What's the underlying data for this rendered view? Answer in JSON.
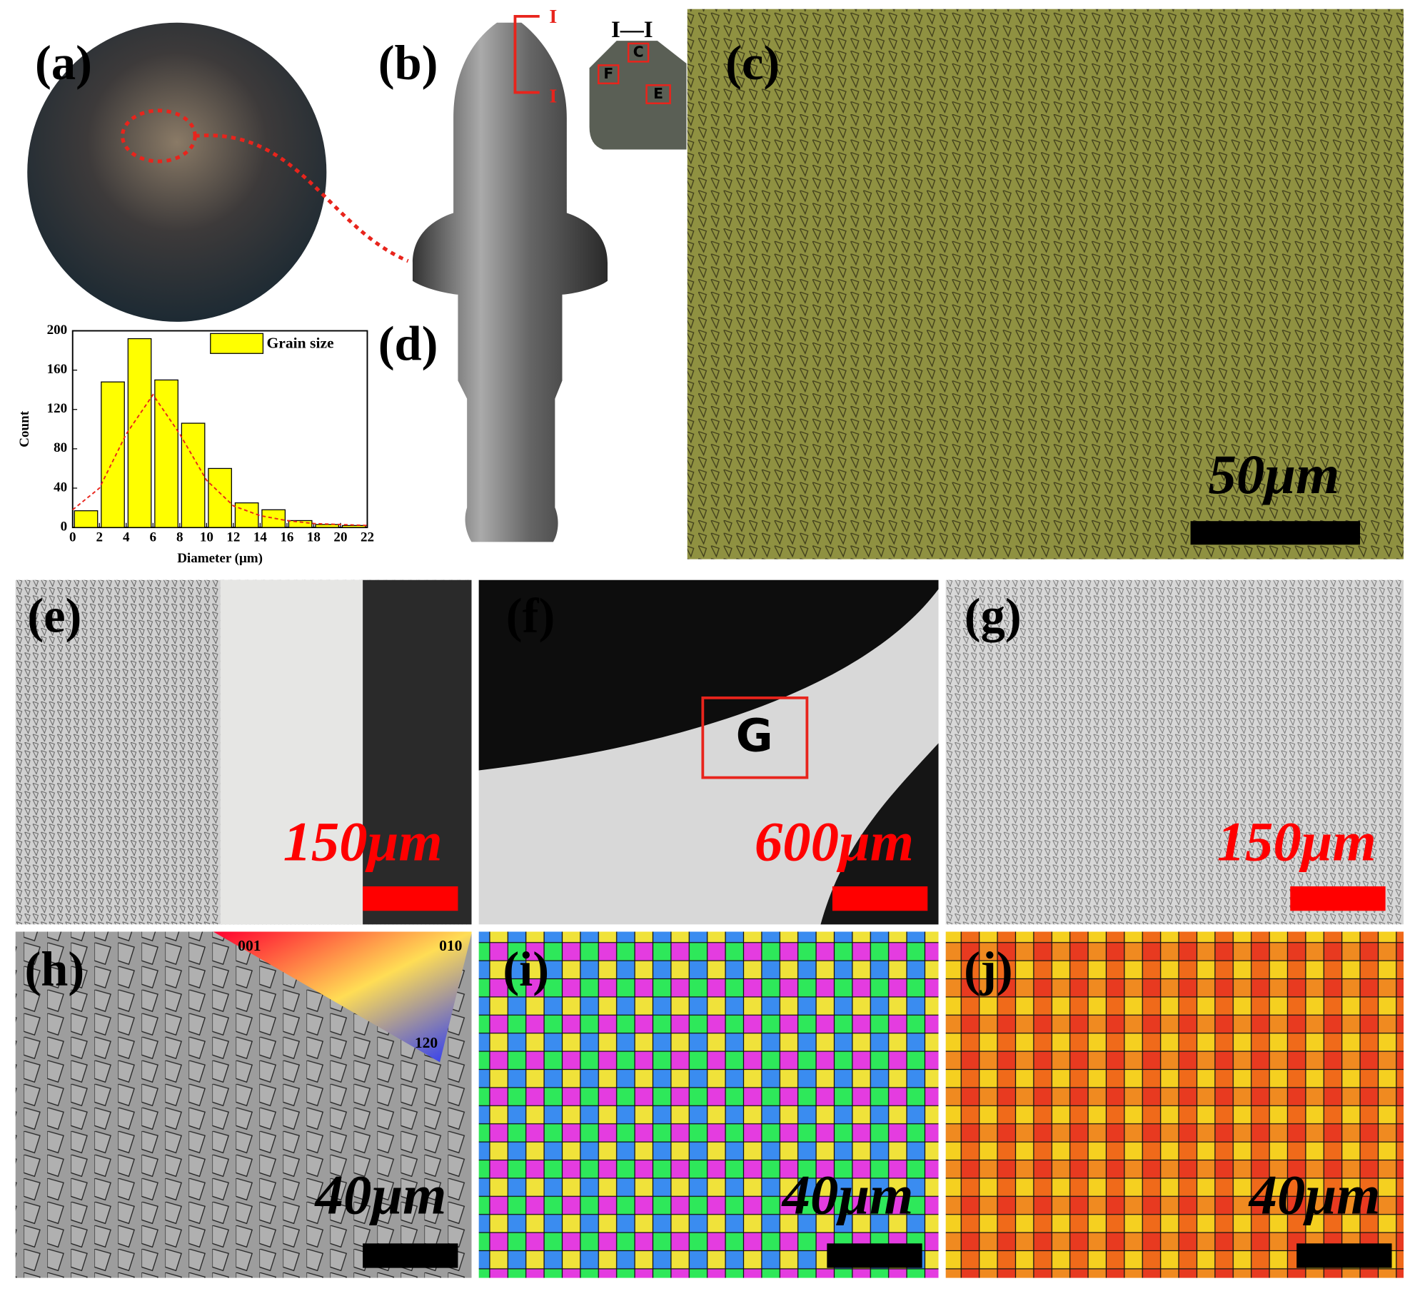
{
  "panels": {
    "labels": [
      "(a)",
      "(b)",
      "(c)",
      "(d)",
      "(e)",
      "(f)",
      "(g)",
      "(h)",
      "(i)",
      "(j)"
    ],
    "section_marks": [
      "I",
      "I",
      "I—I"
    ],
    "region_marks": [
      "C",
      "F",
      "E",
      "G"
    ],
    "scale_bars": [
      "50μm",
      "150μm",
      "600μm",
      "150μm",
      "40μm",
      "40μm",
      "40μm"
    ],
    "color_key": [
      "001",
      "010",
      "120"
    ]
  },
  "chart_data": {
    "type": "histogram",
    "bins": [
      0,
      2,
      4,
      6,
      8,
      10,
      12,
      14,
      16,
      18,
      20,
      22
    ],
    "values": [
      17,
      148,
      192,
      150,
      106,
      60,
      25,
      18,
      7,
      3,
      2
    ],
    "color": "#ffff00",
    "series": [
      {
        "name": "Grain size",
        "color": "#ffff00"
      }
    ],
    "fit": {
      "x": [
        0,
        2,
        4,
        6,
        8,
        10,
        12,
        14,
        16,
        18,
        20,
        22
      ],
      "values": [
        18,
        40,
        95,
        135,
        95,
        48,
        22,
        12,
        7,
        4,
        3,
        2
      ],
      "color": "#e8241c"
    },
    "x_label": "Diameter (μm)",
    "y_label": "Count",
    "xlim": [
      0,
      22
    ],
    "xticks": [
      0,
      2,
      4,
      6,
      8,
      10,
      12,
      14,
      16,
      18,
      20,
      22
    ],
    "ylim": [
      0,
      200
    ],
    "yticks": [
      0,
      40,
      80,
      120,
      160,
      200
    ]
  }
}
